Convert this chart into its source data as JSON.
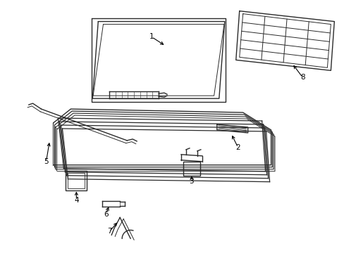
{
  "background_color": "#ffffff",
  "line_color": "#2a2a2a",
  "label_color": "#000000",
  "lw": 1.0
}
